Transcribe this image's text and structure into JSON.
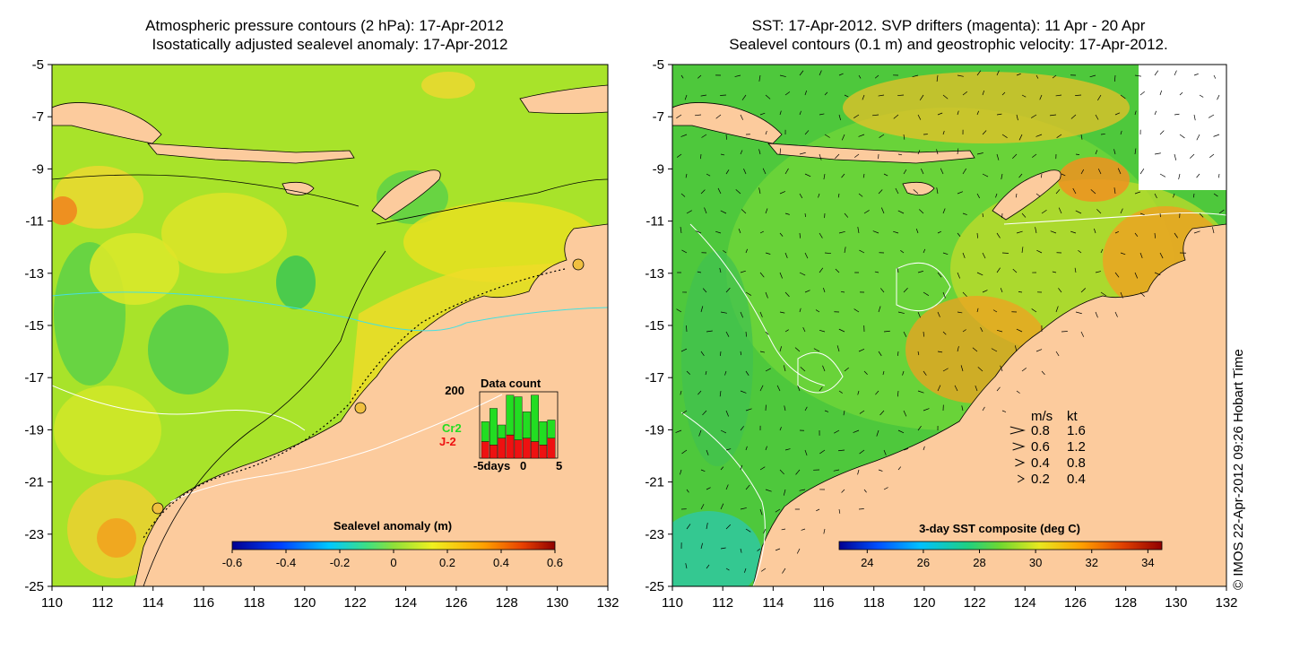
{
  "left_panel": {
    "title_line1": "Atmospheric pressure contours (2 hPa): 17-Apr-2012",
    "title_line2": "Isostatically adjusted sealevel anomaly: 17-Apr-2012",
    "colorbar": {
      "label": "Sealevel anomaly (m)",
      "range": [
        -0.6,
        0.6
      ],
      "ticks": [
        "-0.6",
        "-0.4",
        "-0.2",
        "0",
        "0.2",
        "0.4",
        "0.6"
      ]
    },
    "data_count": {
      "title": "Data count",
      "ymax_label": "200",
      "series1_label": "Cr2",
      "series2_label": "J-2",
      "series1_color": "#22dd22",
      "series2_color": "#ee1111",
      "x_labels": [
        "-5days",
        "0",
        "5"
      ],
      "cr2_counts": [
        60,
        110,
        40,
        120,
        130,
        80,
        140,
        70,
        55
      ],
      "j2_counts": [
        50,
        40,
        60,
        70,
        55,
        60,
        50,
        40,
        60
      ]
    }
  },
  "right_panel": {
    "title_line1": "SST: 17-Apr-2012. SVP drifters (magenta): 11 Apr - 20 Apr",
    "title_line2": "Sealevel contours (0.1 m) and geostrophic velocity: 17-Apr-2012.",
    "colorbar": {
      "label": "3-day SST composite (deg C)",
      "range": [
        23,
        34.5
      ],
      "ticks": [
        "24",
        "26",
        "28",
        "30",
        "32",
        "34"
      ]
    },
    "velocity_legend": {
      "header_ms": "m/s",
      "header_kt": "kt",
      "rows": [
        {
          "ms": "0.8",
          "kt": "1.6"
        },
        {
          "ms": "0.6",
          "kt": "1.2"
        },
        {
          "ms": "0.4",
          "kt": "0.8"
        },
        {
          "ms": "0.2",
          "kt": "0.4"
        }
      ]
    }
  },
  "axes": {
    "lon_ticks": [
      "110",
      "112",
      "114",
      "116",
      "118",
      "120",
      "122",
      "124",
      "126",
      "128",
      "130",
      "132"
    ],
    "lat_ticks": [
      "-5",
      "-7",
      "-9",
      "-11",
      "-13",
      "-15",
      "-17",
      "-19",
      "-21",
      "-23",
      "-25"
    ]
  },
  "credit": "© IMOS 22-Apr-2012 09:26 Hobart Time",
  "colors": {
    "land": "#fccb9d",
    "sea_anomaly": "#a8e32a",
    "sst_base": "#4ec83c",
    "contour_white": "#ffffff",
    "cyan_line": "#44e0e0"
  }
}
